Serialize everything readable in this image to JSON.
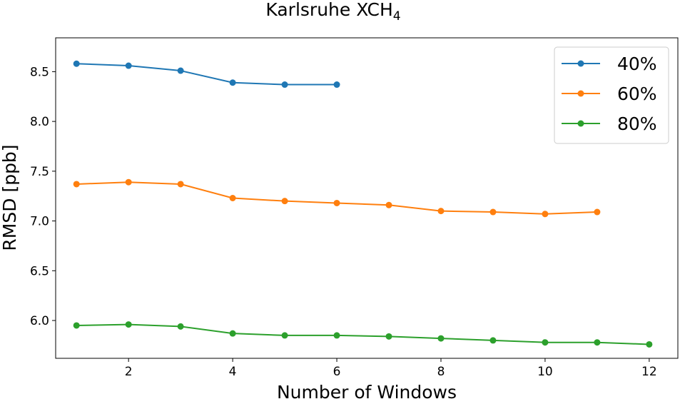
{
  "chart_data": {
    "type": "line",
    "title": {
      "main": "Karlsruhe XCH",
      "subscript": "4"
    },
    "xlabel": "Number of Windows",
    "ylabel": "RMSD [ppb]",
    "xlim": [
      0.6,
      12.55
    ],
    "ylim": [
      5.62,
      8.84
    ],
    "xticks": [
      2,
      4,
      6,
      8,
      10,
      12
    ],
    "yticks": [
      6.0,
      6.5,
      7.0,
      7.5,
      8.0,
      8.5
    ],
    "ytick_labels": [
      "6.0",
      "6.5",
      "7.0",
      "7.5",
      "8.0",
      "8.5"
    ],
    "grid": false,
    "legend_position": "top-right",
    "series": [
      {
        "name": "40%",
        "color": "#1f77b4",
        "x": [
          1,
          2,
          3,
          4,
          5,
          6
        ],
        "y": [
          8.58,
          8.56,
          8.51,
          8.39,
          8.37,
          8.37
        ]
      },
      {
        "name": "60%",
        "color": "#ff7f0e",
        "x": [
          1,
          2,
          3,
          4,
          5,
          6,
          7,
          8,
          9,
          10,
          11
        ],
        "y": [
          7.37,
          7.39,
          7.37,
          7.23,
          7.2,
          7.18,
          7.16,
          7.1,
          7.09,
          7.07,
          7.09
        ]
      },
      {
        "name": "80%",
        "color": "#2ca02c",
        "x": [
          1,
          2,
          3,
          4,
          5,
          6,
          7,
          8,
          9,
          10,
          11,
          12
        ],
        "y": [
          5.95,
          5.96,
          5.94,
          5.87,
          5.85,
          5.85,
          5.84,
          5.82,
          5.8,
          5.78,
          5.78,
          5.76
        ]
      }
    ]
  }
}
